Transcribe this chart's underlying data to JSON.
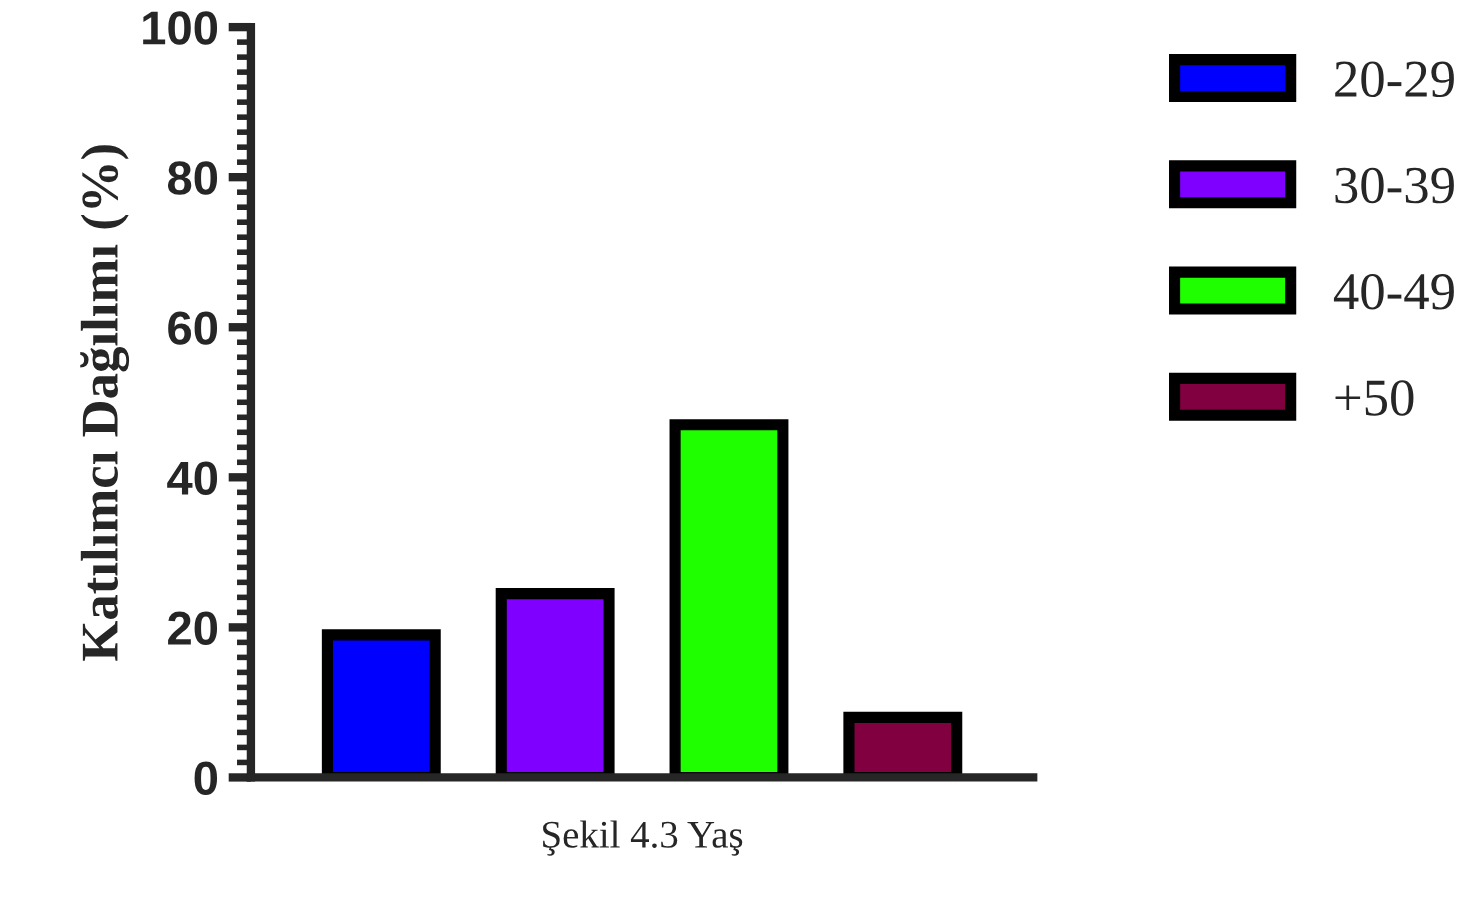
{
  "chart_data": {
    "type": "bar",
    "xlabel": "Şekil 4.3 Yaş",
    "ylabel": "Katılımcı Dağılımı (%)",
    "categories": [
      null,
      null,
      null,
      null
    ],
    "series": [
      {
        "name": "20-29",
        "color": "#0000ff",
        "values": [
          19,
          null,
          null,
          null
        ]
      },
      {
        "name": "30-39",
        "color": "#8000ff",
        "values": [
          null,
          24.5,
          null,
          null
        ]
      },
      {
        "name": "40-49",
        "color": "#1fff00",
        "values": [
          null,
          null,
          47,
          null
        ]
      },
      {
        "name": "+50",
        "color": "#800040",
        "values": [
          null,
          null,
          null,
          8
        ]
      }
    ],
    "ylim": [
      0,
      100
    ],
    "yticks": [
      0,
      20,
      40,
      60,
      80,
      100
    ],
    "legend": "right",
    "grid": false
  }
}
